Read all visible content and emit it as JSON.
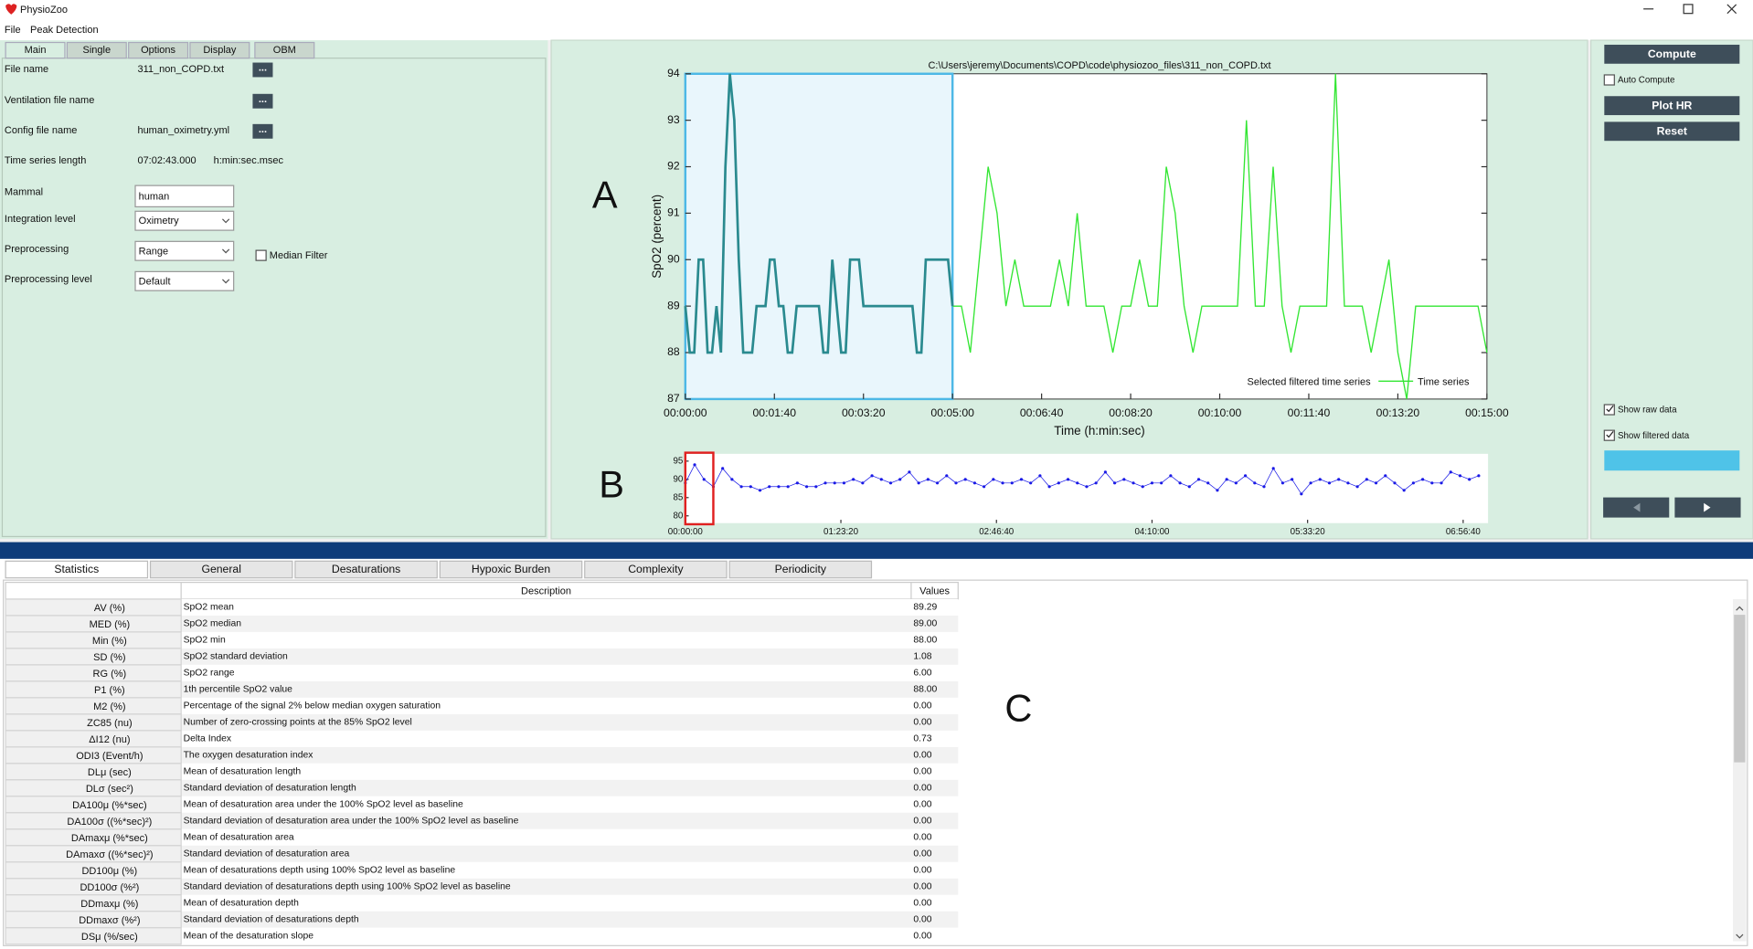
{
  "window_title": "PhysioZoo",
  "menu": [
    "File",
    "Peak Detection"
  ],
  "left_tabs": [
    "Main",
    "Single",
    "Options",
    "Display",
    "OBM"
  ],
  "form_rows": [
    {
      "label": "File name",
      "value": "311_non_COPD.txt",
      "button": "..."
    },
    {
      "label": "Ventilation file name",
      "button": "..."
    },
    {
      "label": "Config file name",
      "value": "human_oximetry.yml",
      "button": "..."
    },
    {
      "label": "Time series length",
      "value": "07:02:43.000",
      "unit": "h:min:sec.msec"
    },
    {
      "label": "Mammal",
      "value": "human"
    },
    {
      "label": "Integration level",
      "value": "Oximetry"
    },
    {
      "label": "Preprocessing",
      "value": "Range",
      "checkbox": "Median Filter"
    },
    {
      "label": "Preprocessing level",
      "value": "Default"
    }
  ],
  "annotations": [
    "A",
    "B",
    "C"
  ],
  "chart_data": [
    {
      "type": "line",
      "title": "C:\\Users\\jeremy\\Documents\\COPD\\code\\physiozoo_files\\311_non_COPD.txt",
      "xlabel": "Time (h:min:sec)",
      "ylabel": "SpO2 (percent)",
      "xlim": [
        0,
        900
      ],
      "ylim": [
        87,
        94
      ],
      "yticks": [
        87,
        88,
        89,
        90,
        91,
        92,
        93,
        94
      ],
      "xticks": [
        {
          "value": 0,
          "label": "00:00:00"
        },
        {
          "value": 100,
          "label": "00:01:40"
        },
        {
          "value": 200,
          "label": "00:03:20"
        },
        {
          "value": 300,
          "label": "00:05:00"
        },
        {
          "value": 400,
          "label": "00:06:40"
        },
        {
          "value": 500,
          "label": "00:08:20"
        },
        {
          "value": 600,
          "label": "00:10:00"
        },
        {
          "value": 700,
          "label": "00:11:40"
        },
        {
          "value": 800,
          "label": "00:13:20"
        },
        {
          "value": 900,
          "label": "00:15:00"
        }
      ],
      "selection": [
        0,
        300
      ],
      "selection_color": "#4db8e6",
      "series": [
        {
          "name": "Selected filtered time series",
          "color": "#2a8a8f",
          "x": [
            0,
            5,
            10,
            15,
            20,
            25,
            30,
            35,
            40,
            45,
            50,
            55,
            60,
            65,
            70,
            75,
            80,
            85,
            90,
            95,
            100,
            105,
            110,
            115,
            120,
            125,
            130,
            135,
            140,
            145,
            150,
            155,
            160,
            165,
            170,
            175,
            180,
            185,
            190,
            195,
            200,
            205,
            210,
            215,
            220,
            225,
            230,
            235,
            240,
            245,
            250,
            255,
            260,
            265,
            270,
            275,
            280,
            285,
            290,
            295,
            300
          ],
          "values": [
            89,
            88,
            88,
            90,
            90,
            88,
            88,
            89,
            88,
            92,
            94,
            93,
            90,
            88,
            88,
            88,
            89,
            89,
            89,
            90,
            90,
            89,
            89,
            88,
            88,
            89,
            89,
            89,
            89,
            89,
            89,
            88,
            88,
            90,
            89,
            88,
            88,
            90,
            90,
            90,
            89,
            89,
            89,
            89,
            89,
            89,
            89,
            89,
            89,
            89,
            89,
            89,
            88,
            88,
            90,
            90,
            90,
            90,
            90,
            90,
            89
          ]
        },
        {
          "name": "Time series",
          "color": "#33e633",
          "x": [
            300,
            310,
            320,
            330,
            340,
            350,
            360,
            370,
            380,
            390,
            400,
            410,
            420,
            430,
            440,
            450,
            460,
            470,
            480,
            490,
            500,
            510,
            520,
            530,
            540,
            550,
            560,
            570,
            580,
            590,
            600,
            610,
            620,
            630,
            640,
            650,
            660,
            670,
            680,
            690,
            700,
            710,
            720,
            730,
            740,
            750,
            760,
            770,
            780,
            790,
            800,
            810,
            820,
            830,
            840,
            850,
            860,
            870,
            880,
            890,
            900
          ],
          "values": [
            89,
            89,
            88,
            90,
            92,
            91,
            89,
            90,
            89,
            89,
            89,
            89,
            90,
            89,
            91,
            89,
            89,
            89,
            88,
            89,
            89,
            90,
            89,
            89,
            92,
            91,
            89,
            88,
            89,
            89,
            89,
            89,
            89,
            93,
            89,
            89,
            92,
            89,
            88,
            89,
            89,
            89,
            89,
            94,
            89,
            89,
            89,
            88,
            89,
            90,
            88,
            87,
            89,
            89,
            89,
            89,
            89,
            89,
            89,
            89,
            88
          ]
        }
      ]
    },
    {
      "type": "scatter",
      "xlim": [
        0,
        25800
      ],
      "ylim": [
        78,
        97
      ],
      "yticks": [
        80,
        85,
        90,
        95
      ],
      "xticks": [
        {
          "value": 0,
          "label": "00:00:00"
        },
        {
          "value": 5000,
          "label": "01:23:20"
        },
        {
          "value": 10000,
          "label": "02:46:40"
        },
        {
          "value": 15000,
          "label": "04:10:00"
        },
        {
          "value": 20000,
          "label": "05:33:20"
        },
        {
          "value": 25000,
          "label": "06:56:40"
        }
      ],
      "window": [
        0,
        900
      ],
      "window_color": "#e02020",
      "color": "#1a1ae6",
      "x": [
        0,
        300,
        600,
        900,
        1200,
        1500,
        1800,
        2100,
        2400,
        2700,
        3000,
        3300,
        3600,
        3900,
        4200,
        4500,
        4800,
        5100,
        5400,
        5700,
        6000,
        6300,
        6600,
        6900,
        7200,
        7500,
        7800,
        8100,
        8400,
        8700,
        9000,
        9300,
        9600,
        9900,
        10200,
        10500,
        10800,
        11100,
        11400,
        11700,
        12000,
        12300,
        12600,
        12900,
        13200,
        13500,
        13800,
        14100,
        14400,
        14700,
        15000,
        15300,
        15600,
        15900,
        16200,
        16500,
        16800,
        17100,
        17400,
        17700,
        18000,
        18300,
        18600,
        18900,
        19200,
        19500,
        19800,
        20100,
        20400,
        20700,
        21000,
        21300,
        21600,
        21900,
        22200,
        22500,
        22800,
        23100,
        23400,
        23700,
        24000,
        24300,
        24600,
        24900,
        25200,
        25500
      ],
      "values": [
        89,
        94,
        90,
        88,
        93,
        90,
        88,
        88,
        87,
        88,
        88,
        88,
        89,
        88,
        88,
        89,
        89,
        89,
        90,
        89,
        91,
        90,
        89,
        90,
        92,
        89,
        90,
        89,
        91,
        89,
        90,
        89,
        88,
        90,
        89,
        89,
        90,
        89,
        91,
        88,
        89,
        90,
        89,
        88,
        89,
        92,
        89,
        90,
        89,
        88,
        89,
        89,
        91,
        89,
        88,
        90,
        89,
        87,
        90,
        89,
        91,
        89,
        88,
        93,
        89,
        90,
        86,
        89,
        90,
        89,
        90,
        89,
        88,
        90,
        89,
        91,
        89,
        87,
        89,
        90,
        89,
        89,
        92,
        91,
        90,
        91
      ]
    }
  ],
  "right_panel": {
    "compute": "Compute",
    "auto_compute": "Auto Compute",
    "plot_hr": "Plot HR",
    "reset": "Reset",
    "show_raw": "Show raw data",
    "show_filtered": "Show filtered data"
  },
  "bottom_tabs": [
    "Statistics",
    "General",
    "Desaturations",
    "Hypoxic Burden",
    "Complexity",
    "Periodicity"
  ],
  "table": {
    "headers": [
      "Description",
      "Values"
    ],
    "rows": [
      [
        "AV (%)",
        "SpO2 mean",
        "89.29"
      ],
      [
        "MED (%)",
        "SpO2 median",
        "89.00"
      ],
      [
        "Min (%)",
        "SpO2 min",
        "88.00"
      ],
      [
        "SD (%)",
        "SpO2 standard deviation",
        "1.08"
      ],
      [
        "RG (%)",
        "SpO2 range",
        "6.00"
      ],
      [
        "P1 (%)",
        "1th percentile SpO2 value",
        "88.00"
      ],
      [
        "M2 (%)",
        "Percentage of the signal 2% below median oxygen saturation",
        "0.00"
      ],
      [
        "ZC85 (nu)",
        "Number of zero-crossing points at the 85% SpO2 level",
        "0.00"
      ],
      [
        "ΔI12 (nu)",
        "Delta Index",
        "0.73"
      ],
      [
        "ODI3 (Event/h)",
        "The oxygen desaturation index",
        "0.00"
      ],
      [
        "DLμ (sec)",
        "Mean of desaturation length",
        "0.00"
      ],
      [
        "DLσ (sec²)",
        "Standard deviation of desaturation length",
        "0.00"
      ],
      [
        "DA100μ (%*sec)",
        "Mean of desaturation area under the 100% SpO2 level as baseline",
        "0.00"
      ],
      [
        "DA100σ ((%*sec)²)",
        "Standard deviation of desaturation area under the 100% SpO2 level as baseline",
        "0.00"
      ],
      [
        "DAmaxμ (%*sec)",
        "Mean of desaturation area",
        "0.00"
      ],
      [
        "DAmaxσ ((%*sec)²)",
        "Standard deviation of desaturation area",
        "0.00"
      ],
      [
        "DD100μ (%)",
        "Mean of desaturations depth using 100% SpO2 level as baseline",
        "0.00"
      ],
      [
        "DD100σ (%²)",
        "Standard deviation of desaturations depth using 100% SpO2 level as baseline",
        "0.00"
      ],
      [
        "DDmaxμ (%)",
        "Mean of desaturation depth",
        "0.00"
      ],
      [
        "DDmaxσ (%²)",
        "Standard deviation of desaturations depth",
        "0.00"
      ],
      [
        "DSμ (%/sec)",
        "Mean of the desaturation slope",
        "0.00"
      ]
    ]
  }
}
